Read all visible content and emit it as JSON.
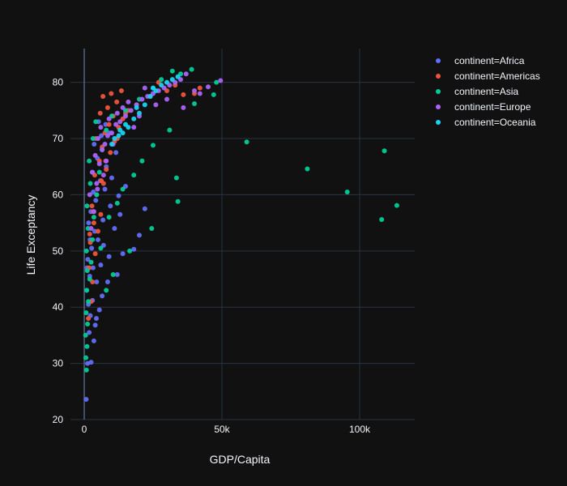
{
  "chart_data": {
    "type": "scatter",
    "title": "",
    "xlabel": "GDP/Capita",
    "ylabel": "Life Exceptancy",
    "xlim": [
      -5000,
      120000
    ],
    "ylim": [
      20,
      86
    ],
    "xticks": [
      0,
      50000,
      100000
    ],
    "xtick_labels": [
      "0",
      "50k",
      "100k"
    ],
    "yticks": [
      20,
      30,
      40,
      50,
      60,
      70,
      80
    ],
    "ytick_labels": [
      "20",
      "30",
      "40",
      "50",
      "60",
      "70",
      "80"
    ],
    "grid": true,
    "legend_position": "top-right",
    "series": [
      {
        "name": "continent=Africa",
        "color": "#636efa",
        "points": [
          [
            700,
            23.6
          ],
          [
            1200,
            30.0
          ],
          [
            2500,
            30.2
          ],
          [
            3500,
            34.0
          ],
          [
            1800,
            35.5
          ],
          [
            4000,
            36.8
          ],
          [
            2200,
            38.5
          ],
          [
            5500,
            39.5
          ],
          [
            1500,
            40.5
          ],
          [
            3000,
            41.2
          ],
          [
            6500,
            42.0
          ],
          [
            900,
            43.0
          ],
          [
            4500,
            44.5
          ],
          [
            8500,
            44.5
          ],
          [
            2000,
            45.5
          ],
          [
            12000,
            45.8
          ],
          [
            3200,
            47.0
          ],
          [
            6000,
            47.5
          ],
          [
            1300,
            48.5
          ],
          [
            9000,
            49.0
          ],
          [
            14000,
            49.5
          ],
          [
            2700,
            50.5
          ],
          [
            7000,
            51.0
          ],
          [
            18000,
            50.3
          ],
          [
            5000,
            52.0
          ],
          [
            20000,
            52.8
          ],
          [
            3800,
            53.5
          ],
          [
            11000,
            54.0
          ],
          [
            1600,
            55.0
          ],
          [
            6800,
            55.5
          ],
          [
            13000,
            56.5
          ],
          [
            22000,
            57.5
          ],
          [
            2400,
            57.0
          ],
          [
            9500,
            58.0
          ],
          [
            4200,
            59.0
          ],
          [
            12500,
            59.8
          ],
          [
            3300,
            60.5
          ],
          [
            7500,
            61.0
          ],
          [
            15000,
            61.5
          ],
          [
            5800,
            62.5
          ],
          [
            10000,
            63.0
          ],
          [
            2900,
            64.0
          ],
          [
            8000,
            65.0
          ],
          [
            4800,
            66.5
          ],
          [
            11500,
            67.5
          ],
          [
            3600,
            69.0
          ],
          [
            6200,
            70.5
          ],
          [
            9200,
            71.0
          ],
          [
            7800,
            72.5
          ],
          [
            5200,
            73.0
          ],
          [
            2100,
            52.0
          ],
          [
            1000,
            47.0
          ],
          [
            4400,
            38.0
          ]
        ]
      },
      {
        "name": "continent=Americas",
        "color": "#ef553b",
        "points": [
          [
            1500,
            38.0
          ],
          [
            2500,
            41.0
          ],
          [
            3000,
            44.5
          ],
          [
            1800,
            47.0
          ],
          [
            4000,
            49.5
          ],
          [
            2200,
            51.5
          ],
          [
            5000,
            53.5
          ],
          [
            3500,
            55.0
          ],
          [
            6000,
            56.5
          ],
          [
            2800,
            58.0
          ],
          [
            4500,
            60.0
          ],
          [
            7000,
            62.0
          ],
          [
            3800,
            63.5
          ],
          [
            8000,
            64.5
          ],
          [
            5500,
            66.0
          ],
          [
            9500,
            67.5
          ],
          [
            6500,
            68.5
          ],
          [
            11000,
            69.5
          ],
          [
            4200,
            70.0
          ],
          [
            7500,
            71.0
          ],
          [
            12500,
            72.0
          ],
          [
            9000,
            72.5
          ],
          [
            14000,
            73.5
          ],
          [
            10500,
            74.0
          ],
          [
            5800,
            74.5
          ],
          [
            16000,
            75.0
          ],
          [
            8500,
            75.5
          ],
          [
            19000,
            76.0
          ],
          [
            11800,
            76.5
          ],
          [
            6800,
            77.5
          ],
          [
            9800,
            78.0
          ],
          [
            13500,
            78.5
          ],
          [
            24000,
            77.5
          ],
          [
            30000,
            78.5
          ],
          [
            36000,
            77.8
          ],
          [
            40000,
            78.0
          ],
          [
            42000,
            79.0
          ],
          [
            33000,
            79.5
          ],
          [
            27000,
            80.0
          ],
          [
            3300,
            57.0
          ],
          [
            2000,
            53.0
          ],
          [
            6200,
            62.5
          ],
          [
            15000,
            74.5
          ],
          [
            12000,
            70.0
          ],
          [
            7800,
            66.0
          ]
        ]
      },
      {
        "name": "continent=Asia",
        "color": "#00cc96",
        "points": [
          [
            800,
            28.8
          ],
          [
            600,
            31.0
          ],
          [
            1000,
            33.0
          ],
          [
            500,
            35.0
          ],
          [
            1200,
            37.0
          ],
          [
            700,
            39.0
          ],
          [
            1500,
            41.0
          ],
          [
            900,
            43.0
          ],
          [
            2000,
            45.0
          ],
          [
            1100,
            46.5
          ],
          [
            2500,
            48.0
          ],
          [
            800,
            50.0
          ],
          [
            3000,
            52.0
          ],
          [
            1400,
            54.0
          ],
          [
            3500,
            56.0
          ],
          [
            1000,
            58.0
          ],
          [
            4500,
            60.0
          ],
          [
            2200,
            62.0
          ],
          [
            5500,
            64.0
          ],
          [
            1800,
            66.0
          ],
          [
            6500,
            68.0
          ],
          [
            3200,
            70.0
          ],
          [
            8000,
            71.5
          ],
          [
            4200,
            73.0
          ],
          [
            10000,
            74.0
          ],
          [
            15000,
            75.0
          ],
          [
            20000,
            77.0
          ],
          [
            25000,
            79.0
          ],
          [
            28000,
            80.5
          ],
          [
            32000,
            82.0
          ],
          [
            35000,
            81.5
          ],
          [
            39000,
            82.3
          ],
          [
            48000,
            80.0
          ],
          [
            47000,
            77.8
          ],
          [
            40000,
            76.2
          ],
          [
            31000,
            71.5
          ],
          [
            25000,
            68.8
          ],
          [
            18000,
            63.5
          ],
          [
            16500,
            50.0
          ],
          [
            34000,
            58.8
          ],
          [
            33500,
            63.0
          ],
          [
            24500,
            54.0
          ],
          [
            10500,
            45.8
          ],
          [
            8000,
            43.0
          ],
          [
            59000,
            69.4
          ],
          [
            81000,
            64.6
          ],
          [
            95500,
            60.5
          ],
          [
            108000,
            55.6
          ],
          [
            109000,
            67.8
          ],
          [
            113500,
            58.1
          ],
          [
            12000,
            58.5
          ],
          [
            9000,
            56.0
          ],
          [
            21000,
            66.0
          ],
          [
            14000,
            61.0
          ],
          [
            6000,
            50.5
          ]
        ]
      },
      {
        "name": "continent=Europe",
        "color": "#ab63fa",
        "points": [
          [
            2500,
            54.0
          ],
          [
            3500,
            57.0
          ],
          [
            2000,
            60.0
          ],
          [
            4500,
            62.0
          ],
          [
            3000,
            64.0
          ],
          [
            5500,
            65.5
          ],
          [
            4000,
            67.0
          ],
          [
            6500,
            68.0
          ],
          [
            7500,
            69.0
          ],
          [
            5000,
            70.0
          ],
          [
            8500,
            70.5
          ],
          [
            10000,
            71.0
          ],
          [
            6000,
            72.0
          ],
          [
            11500,
            72.5
          ],
          [
            13000,
            73.0
          ],
          [
            9000,
            73.5
          ],
          [
            15000,
            74.0
          ],
          [
            12000,
            74.5
          ],
          [
            17000,
            75.0
          ],
          [
            14000,
            75.5
          ],
          [
            19000,
            76.0
          ],
          [
            16000,
            76.5
          ],
          [
            21000,
            77.0
          ],
          [
            23000,
            77.5
          ],
          [
            25000,
            78.0
          ],
          [
            27000,
            78.5
          ],
          [
            29000,
            79.0
          ],
          [
            31000,
            79.5
          ],
          [
            33000,
            80.0
          ],
          [
            35000,
            80.5
          ],
          [
            37000,
            81.5
          ],
          [
            40000,
            78.5
          ],
          [
            42000,
            78.0
          ],
          [
            45000,
            79.2
          ],
          [
            49500,
            80.3
          ],
          [
            26000,
            76.0
          ],
          [
            20000,
            74.0
          ],
          [
            8000,
            66.0
          ],
          [
            4800,
            61.0
          ],
          [
            10500,
            69.0
          ],
          [
            18000,
            72.0
          ],
          [
            30000,
            77.0
          ],
          [
            36000,
            75.5
          ],
          [
            7000,
            63.5
          ],
          [
            22000,
            79.0
          ]
        ]
      },
      {
        "name": "continent=Oceania",
        "color": "#19d3f3",
        "points": [
          [
            10000,
            69.0
          ],
          [
            11000,
            70.0
          ],
          [
            12500,
            70.5
          ],
          [
            14000,
            71.0
          ],
          [
            16000,
            72.0
          ],
          [
            18000,
            73.5
          ],
          [
            20000,
            74.5
          ],
          [
            22000,
            76.0
          ],
          [
            24000,
            77.5
          ],
          [
            26000,
            78.5
          ],
          [
            28000,
            79.5
          ],
          [
            30000,
            80.0
          ],
          [
            32000,
            80.5
          ],
          [
            34000,
            81.0
          ],
          [
            25000,
            79.0
          ],
          [
            19000,
            75.5
          ],
          [
            15000,
            72.5
          ],
          [
            13000,
            71.5
          ]
        ]
      }
    ]
  }
}
